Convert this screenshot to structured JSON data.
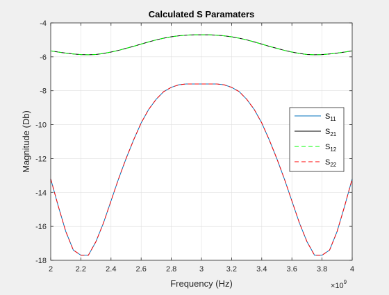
{
  "chart_data": {
    "type": "line",
    "title": "Calculated S Paramaters",
    "xlabel": "Frequency (Hz)",
    "ylabel": "Magnitude (Db)",
    "x_exponent_label": {
      "base": "×10",
      "exp": "9"
    },
    "xlim": [
      2,
      4
    ],
    "ylim": [
      -18,
      -4
    ],
    "x_ticks": [
      "2",
      "2.2",
      "2.4",
      "2.6",
      "2.8",
      "3",
      "3.2",
      "3.4",
      "3.6",
      "3.8",
      "4"
    ],
    "y_ticks": [
      "-4",
      "-6",
      "-8",
      "-10",
      "-12",
      "-14",
      "-16",
      "-18"
    ],
    "grid": true,
    "legend_position": "right",
    "x": [
      2.0,
      2.05,
      2.1,
      2.15,
      2.2,
      2.25,
      2.3,
      2.35,
      2.4,
      2.45,
      2.5,
      2.55,
      2.6,
      2.65,
      2.7,
      2.75,
      2.8,
      2.85,
      2.9,
      2.95,
      3.0,
      3.05,
      3.1,
      3.15,
      3.2,
      3.25,
      3.3,
      3.35,
      3.4,
      3.45,
      3.5,
      3.55,
      3.6,
      3.65,
      3.7,
      3.75,
      3.8,
      3.85,
      3.9,
      3.95,
      4.0
    ],
    "series": [
      {
        "name": "S",
        "sub": "11",
        "color": "#0072bd",
        "dash": "solid",
        "values": [
          -13.2,
          -14.8,
          -16.3,
          -17.4,
          -17.7,
          -17.7,
          -16.9,
          -15.8,
          -14.5,
          -13.2,
          -12.0,
          -10.9,
          -9.9,
          -9.1,
          -8.5,
          -8.05,
          -7.8,
          -7.65,
          -7.6,
          -7.6,
          -7.6,
          -7.6,
          -7.6,
          -7.65,
          -7.8,
          -8.05,
          -8.5,
          -9.1,
          -9.9,
          -10.9,
          -12.0,
          -13.2,
          -14.5,
          -15.8,
          -16.9,
          -17.7,
          -17.7,
          -17.4,
          -16.3,
          -14.8,
          -13.2
        ]
      },
      {
        "name": "S",
        "sub": "21",
        "color": "#000000",
        "dash": "solid",
        "values": [
          -5.65,
          -5.72,
          -5.78,
          -5.83,
          -5.87,
          -5.88,
          -5.86,
          -5.8,
          -5.72,
          -5.62,
          -5.5,
          -5.38,
          -5.25,
          -5.12,
          -5.0,
          -4.9,
          -4.82,
          -4.76,
          -4.72,
          -4.7,
          -4.7,
          -4.7,
          -4.72,
          -4.76,
          -4.82,
          -4.9,
          -5.0,
          -5.12,
          -5.25,
          -5.38,
          -5.5,
          -5.62,
          -5.72,
          -5.8,
          -5.86,
          -5.88,
          -5.87,
          -5.83,
          -5.78,
          -5.72,
          -5.65
        ]
      },
      {
        "name": "S",
        "sub": "12",
        "color": "#00ff00",
        "dash": "dashed",
        "values": [
          -5.65,
          -5.72,
          -5.78,
          -5.83,
          -5.87,
          -5.88,
          -5.86,
          -5.8,
          -5.72,
          -5.62,
          -5.5,
          -5.38,
          -5.25,
          -5.12,
          -5.0,
          -4.9,
          -4.82,
          -4.76,
          -4.72,
          -4.7,
          -4.7,
          -4.7,
          -4.72,
          -4.76,
          -4.82,
          -4.9,
          -5.0,
          -5.12,
          -5.25,
          -5.38,
          -5.5,
          -5.62,
          -5.72,
          -5.8,
          -5.86,
          -5.88,
          -5.87,
          -5.83,
          -5.78,
          -5.72,
          -5.65
        ]
      },
      {
        "name": "S",
        "sub": "22",
        "color": "#ff0000",
        "dash": "dashed",
        "values": [
          -13.2,
          -14.8,
          -16.3,
          -17.4,
          -17.7,
          -17.7,
          -16.9,
          -15.8,
          -14.5,
          -13.2,
          -12.0,
          -10.9,
          -9.9,
          -9.1,
          -8.5,
          -8.05,
          -7.8,
          -7.65,
          -7.6,
          -7.6,
          -7.6,
          -7.6,
          -7.6,
          -7.65,
          -7.8,
          -8.05,
          -8.5,
          -9.1,
          -9.9,
          -10.9,
          -12.0,
          -13.2,
          -14.5,
          -15.8,
          -16.9,
          -17.7,
          -17.7,
          -17.4,
          -16.3,
          -14.8,
          -13.2
        ]
      }
    ]
  }
}
